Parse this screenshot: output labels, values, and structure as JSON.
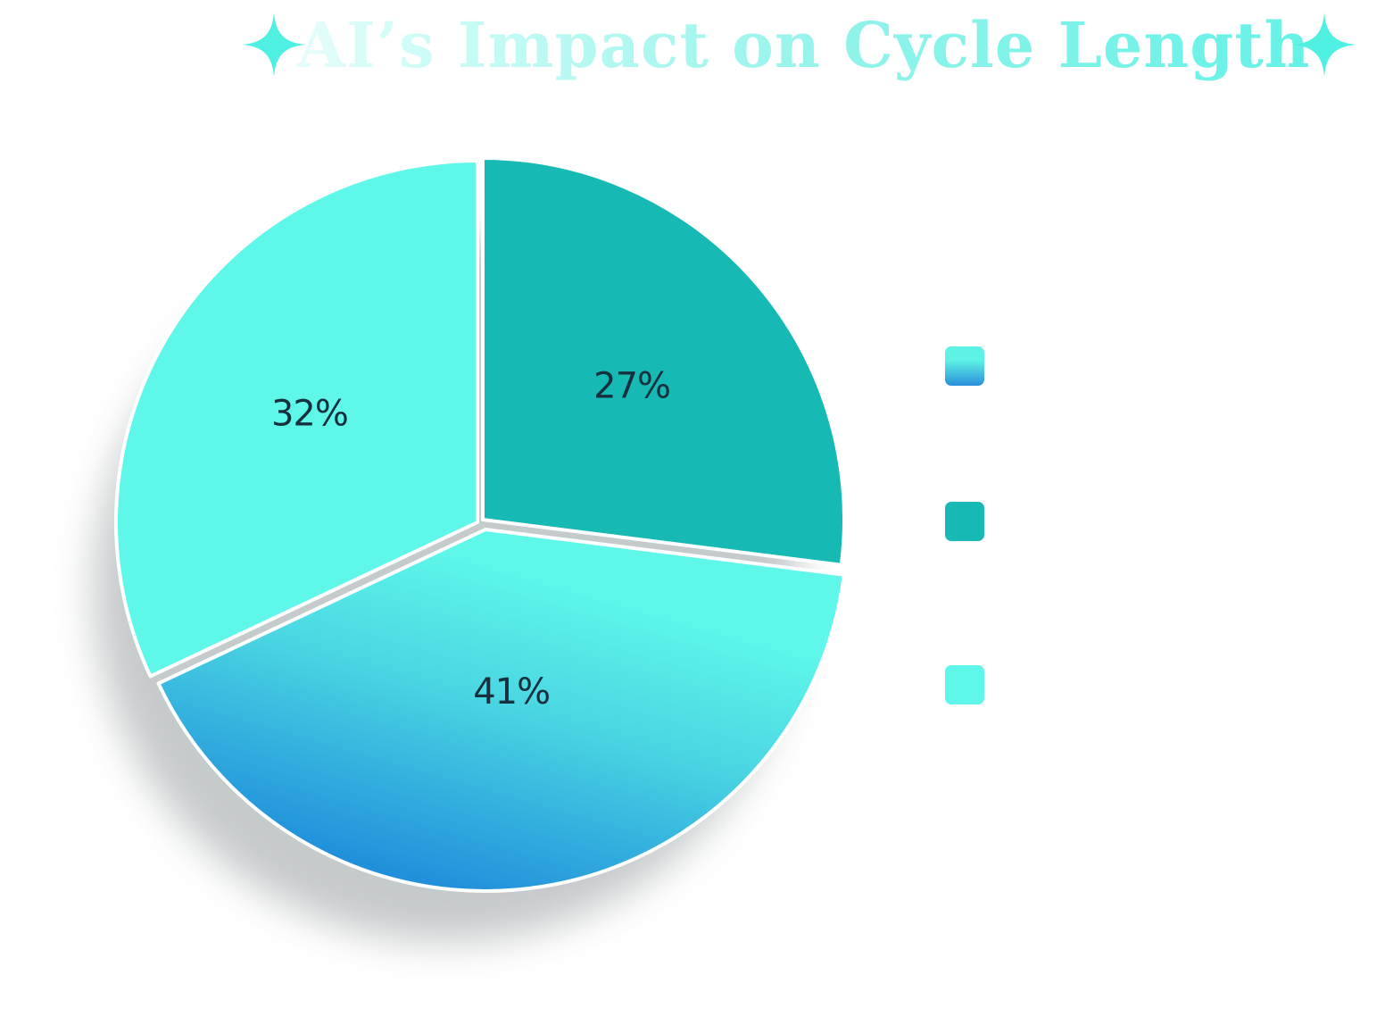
{
  "chart_data": {
    "type": "pie",
    "title": "AI’s Impact on Cycle Length",
    "start_angle_deg": 0,
    "slices": [
      {
        "value": 27,
        "label": "27%",
        "color": "#16b9b4"
      },
      {
        "value": 41,
        "label": "41%",
        "color": "#5ef7ea",
        "gradient_end": "#2190db"
      },
      {
        "value": 32,
        "label": "32%",
        "color": "#5ef7ea"
      }
    ],
    "legend": {
      "placement": "right",
      "items": [
        {
          "color": "#5ef2e6",
          "gradient_end": "#2a8fd9",
          "text": ""
        },
        {
          "color": "#16b9b4",
          "text": ""
        },
        {
          "color": "#5ef7ea",
          "text": ""
        }
      ]
    }
  },
  "decorations": {
    "sparkle_color": "#4ef0e2",
    "sparkle_icon": "four-point-star"
  }
}
